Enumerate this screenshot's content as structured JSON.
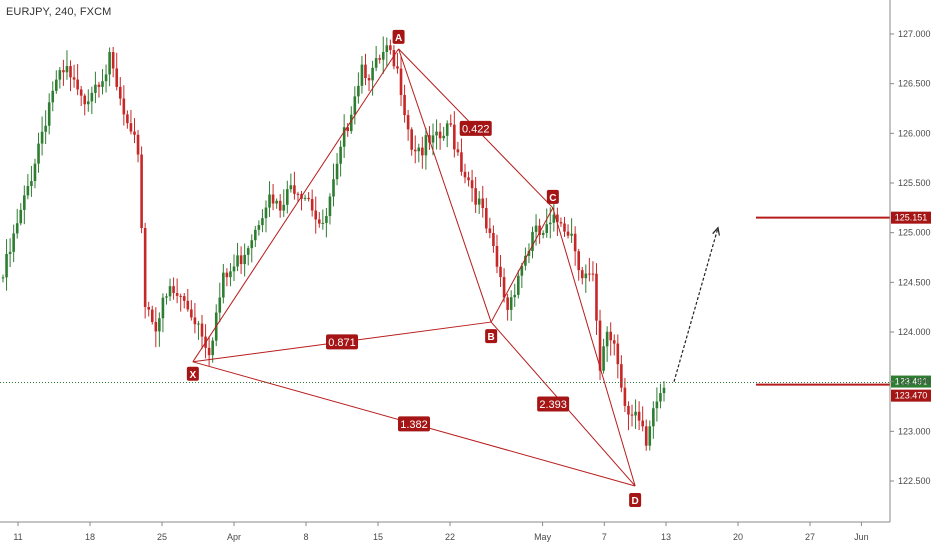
{
  "header": {
    "symbol_label": "EURJPY, 240, FXCM"
  },
  "colors": {
    "up": "#2e7d32",
    "down": "#c62828",
    "pattern": "#b71c1c",
    "label_bg": "#a51515",
    "current_line": "#2e7d32",
    "axis_text": "#4a4a4a"
  },
  "chart_data": {
    "type": "candlestick",
    "x_ticks": [
      "11",
      "18",
      "25",
      "Apr",
      "8",
      "15",
      "22",
      "May",
      "7",
      "13",
      "20",
      "27",
      "Jun"
    ],
    "y_ticks": [
      "127.000",
      "126.500",
      "126.000",
      "125.500",
      "125.000",
      "124.500",
      "124.000",
      "123.500",
      "123.000",
      "122.500"
    ],
    "ylim": [
      122.1,
      127.3
    ],
    "anchors": [
      {
        "i": 0,
        "p": 124.55
      },
      {
        "i": 6,
        "p": 125.3
      },
      {
        "i": 10,
        "p": 125.9
      },
      {
        "i": 14,
        "p": 126.45
      },
      {
        "i": 18,
        "p": 126.6
      },
      {
        "i": 22,
        "p": 126.3
      },
      {
        "i": 26,
        "p": 126.55
      },
      {
        "i": 30,
        "p": 126.7
      },
      {
        "i": 33,
        "p": 126.3
      },
      {
        "i": 36,
        "p": 125.9
      },
      {
        "i": 38,
        "p": 125.85
      },
      {
        "i": 40,
        "p": 124.3
      },
      {
        "i": 43,
        "p": 124.1
      },
      {
        "i": 47,
        "p": 124.4
      },
      {
        "i": 51,
        "p": 124.3
      },
      {
        "i": 55,
        "p": 124.1
      },
      {
        "i": 58,
        "p": 123.85
      },
      {
        "i": 62,
        "p": 124.5
      },
      {
        "i": 66,
        "p": 124.7
      },
      {
        "i": 70,
        "p": 125.0
      },
      {
        "i": 74,
        "p": 125.35
      },
      {
        "i": 78,
        "p": 125.2
      },
      {
        "i": 82,
        "p": 125.5
      },
      {
        "i": 86,
        "p": 125.4
      },
      {
        "i": 90,
        "p": 125.0
      },
      {
        "i": 94,
        "p": 125.6
      },
      {
        "i": 98,
        "p": 126.3
      },
      {
        "i": 101,
        "p": 126.7
      },
      {
        "i": 104,
        "p": 126.6
      },
      {
        "i": 108,
        "p": 126.8
      },
      {
        "i": 112,
        "p": 126.5
      },
      {
        "i": 115,
        "p": 125.9
      },
      {
        "i": 118,
        "p": 125.85
      },
      {
        "i": 122,
        "p": 125.9
      },
      {
        "i": 126,
        "p": 126.05
      },
      {
        "i": 129,
        "p": 125.7
      },
      {
        "i": 133,
        "p": 125.4
      },
      {
        "i": 137,
        "p": 124.9
      },
      {
        "i": 140,
        "p": 124.5
      },
      {
        "i": 142,
        "p": 124.25
      },
      {
        "i": 145,
        "p": 124.6
      },
      {
        "i": 149,
        "p": 124.95
      },
      {
        "i": 153,
        "p": 125.0
      },
      {
        "i": 157,
        "p": 125.15
      },
      {
        "i": 160,
        "p": 125.0
      },
      {
        "i": 163,
        "p": 124.6
      },
      {
        "i": 166,
        "p": 124.5
      },
      {
        "i": 168,
        "p": 123.55
      },
      {
        "i": 170,
        "p": 124.0
      },
      {
        "i": 172,
        "p": 123.9
      },
      {
        "i": 175,
        "p": 123.3
      },
      {
        "i": 178,
        "p": 123.2
      },
      {
        "i": 181,
        "p": 122.8
      },
      {
        "i": 184,
        "p": 123.3
      },
      {
        "i": 186,
        "p": 123.45
      }
    ],
    "pattern_points": [
      {
        "label": "X",
        "date": "Mar 28",
        "price": 123.7
      },
      {
        "label": "A",
        "date": "Apr 17",
        "price": 126.85
      },
      {
        "label": "B",
        "date": "Apr 26",
        "price": 124.1
      },
      {
        "label": "C",
        "date": "May 2",
        "price": 125.25
      },
      {
        "label": "D",
        "date": "May 10",
        "price": 122.45
      }
    ],
    "ratios": [
      {
        "value": "0.422",
        "between": [
          "A",
          "C"
        ]
      },
      {
        "value": "0.871",
        "between": [
          "X",
          "B"
        ]
      },
      {
        "value": "2.393",
        "between": [
          "B",
          "D"
        ]
      },
      {
        "value": "1.382",
        "between": [
          "X",
          "D"
        ]
      }
    ],
    "projection": {
      "from_price": 123.5,
      "to_price": 125.05
    },
    "levels": [
      {
        "price": 125.151,
        "label": "125.151"
      },
      {
        "price": 123.47,
        "label": "123.470"
      }
    ],
    "current_price": {
      "price": 123.491,
      "label": "123.491"
    }
  }
}
